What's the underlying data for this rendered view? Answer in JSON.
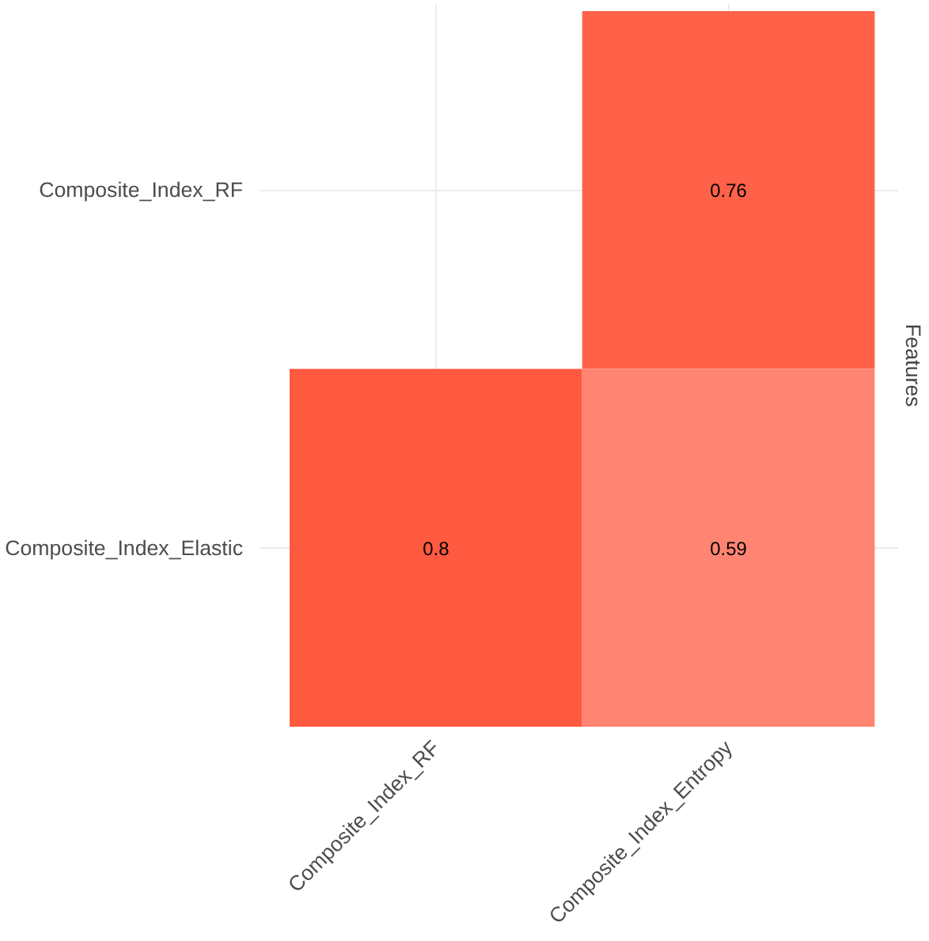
{
  "chart_data": {
    "type": "heatmap",
    "ylabel": "Features",
    "color": "#ff3010",
    "grid": true,
    "categories": [
      "Composite_Index_RF",
      "Composite_Index_Entropy"
    ],
    "y_categories": [
      "Composite_Index_RF",
      "Composite_Index_Elastic"
    ],
    "cells": [
      [
        null,
        0.76
      ],
      [
        0.8,
        0.59
      ]
    ],
    "data_labels": true
  }
}
